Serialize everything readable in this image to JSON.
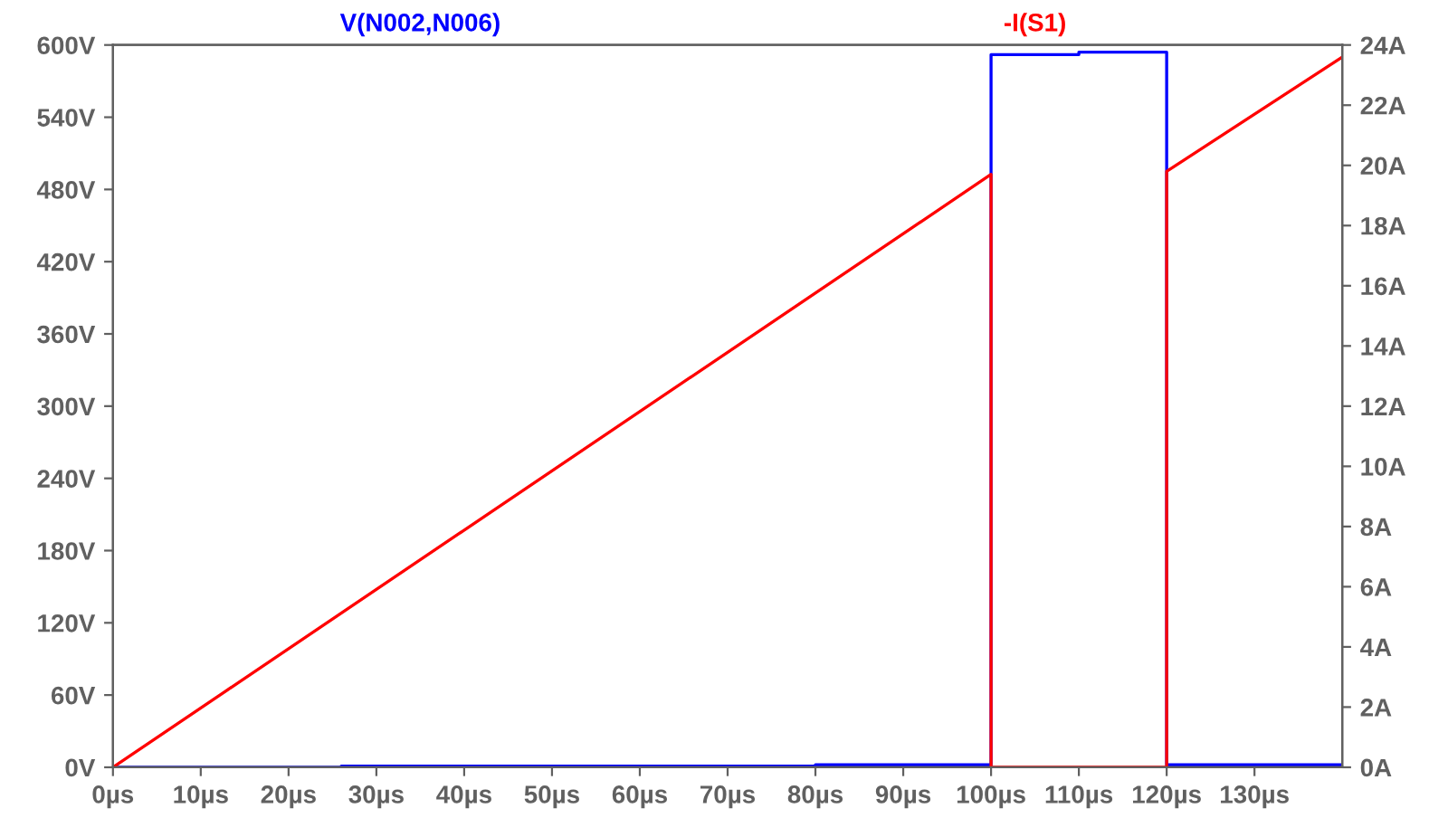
{
  "chart_data": {
    "type": "line",
    "xlim": [
      0,
      140
    ],
    "xticks": [
      {
        "value": 0,
        "label": "0µs"
      },
      {
        "value": 10,
        "label": "10µs"
      },
      {
        "value": 20,
        "label": "20µs"
      },
      {
        "value": 30,
        "label": "30µs"
      },
      {
        "value": 40,
        "label": "40µs"
      },
      {
        "value": 50,
        "label": "50µs"
      },
      {
        "value": 60,
        "label": "60µs"
      },
      {
        "value": 70,
        "label": "70µs"
      },
      {
        "value": 80,
        "label": "80µs"
      },
      {
        "value": 90,
        "label": "90µs"
      },
      {
        "value": 100,
        "label": "100µs"
      },
      {
        "value": 110,
        "label": "110µs"
      },
      {
        "value": 120,
        "label": "120µs"
      },
      {
        "value": 130,
        "label": "130µs"
      }
    ],
    "ylim": [
      0,
      600
    ],
    "yticks": [
      {
        "value": 0,
        "label": "0V"
      },
      {
        "value": 60,
        "label": "60V"
      },
      {
        "value": 120,
        "label": "120V"
      },
      {
        "value": 180,
        "label": "180V"
      },
      {
        "value": 240,
        "label": "240V"
      },
      {
        "value": 300,
        "label": "300V"
      },
      {
        "value": 360,
        "label": "360V"
      },
      {
        "value": 420,
        "label": "420V"
      },
      {
        "value": 480,
        "label": "480V"
      },
      {
        "value": 540,
        "label": "540V"
      },
      {
        "value": 600,
        "label": "600V"
      }
    ],
    "y2lim": [
      0,
      24
    ],
    "y2ticks": [
      {
        "value": 0,
        "label": "0A"
      },
      {
        "value": 2,
        "label": "2A"
      },
      {
        "value": 4,
        "label": "4A"
      },
      {
        "value": 6,
        "label": "6A"
      },
      {
        "value": 8,
        "label": "8A"
      },
      {
        "value": 10,
        "label": "10A"
      },
      {
        "value": 12,
        "label": "12A"
      },
      {
        "value": 14,
        "label": "14A"
      },
      {
        "value": 16,
        "label": "16A"
      },
      {
        "value": 18,
        "label": "18A"
      },
      {
        "value": 20,
        "label": "20A"
      },
      {
        "value": 22,
        "label": "22A"
      },
      {
        "value": 24,
        "label": "24A"
      }
    ],
    "grid": false,
    "series": [
      {
        "name": "V(N002,N006)",
        "color": "#0000ff",
        "x": [
          0,
          26,
          26,
          80,
          80,
          100,
          100,
          110,
          110,
          120,
          120,
          140
        ],
        "values": [
          0,
          0,
          1,
          1,
          2,
          2,
          592,
          592,
          594,
          594,
          2,
          2
        ]
      },
      {
        "name": "-I(S1)",
        "color": "#ff0000",
        "axis": "y2",
        "x": [
          0,
          100,
          100,
          120,
          120,
          140
        ],
        "values": [
          0,
          19.7,
          0,
          0,
          19.8,
          23.6
        ]
      }
    ]
  }
}
